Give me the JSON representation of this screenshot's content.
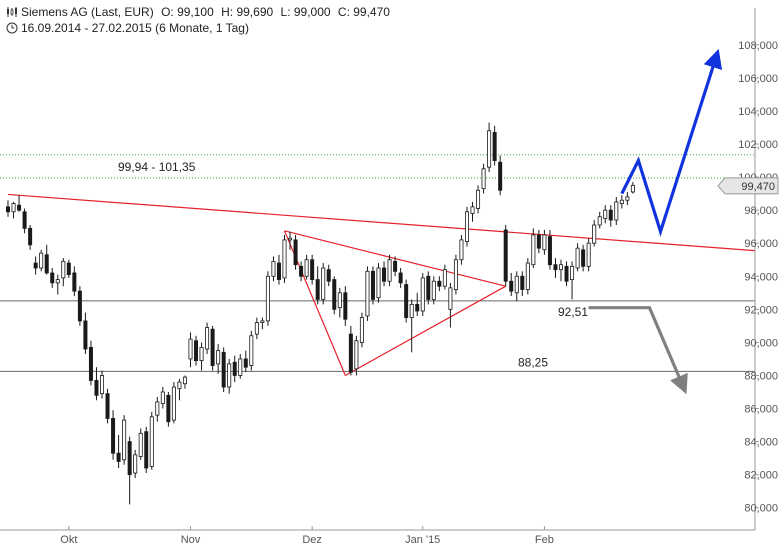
{
  "header": {
    "instrument": "Siemens AG (Last, EUR)",
    "open": "O: 99,100",
    "high": "H: 99,690",
    "low": "L: 99,000",
    "close": "C: 99,470",
    "range": "16.09.2014 - 27.02.2015 (6 Monate, 1 Tag)",
    "chart_icon": "candlestick-chart-icon",
    "clock_icon": "clock-icon"
  },
  "last_price_tag": "99,470",
  "colors": {
    "candle": "#1a1a1a",
    "trendline": "#e8212b",
    "projection_up": "#1133dd",
    "projection_down": "#808080",
    "support_line": "#666666",
    "resistance_zone": "#3aa83a"
  },
  "annotations": {
    "resistance_zone": "99,94 - 101,35",
    "support_high": "92,51",
    "support_low": "88,25"
  },
  "chart_data": {
    "type": "candlestick",
    "ylim": [
      79.5,
      109.5
    ],
    "y_ticks": [
      "80,000",
      "82,000",
      "84,000",
      "86,000",
      "88,000",
      "90,000",
      "92,000",
      "94,000",
      "96,000",
      "98,000",
      "100,000",
      "102,000",
      "104,000",
      "106,000",
      "108,000"
    ],
    "y_tick_values": [
      80,
      82,
      84,
      86,
      88,
      90,
      92,
      94,
      96,
      98,
      100,
      102,
      104,
      106,
      108
    ],
    "x_ticks": [
      "Okt",
      "Nov",
      "Dez",
      "Jan '15",
      "Feb"
    ],
    "x_tick_index": [
      11,
      33,
      55,
      75,
      97
    ],
    "candles": [
      [
        98.2,
        98.6,
        97.6,
        97.9
      ],
      [
        97.9,
        98.5,
        97.5,
        98.4
      ],
      [
        98.3,
        98.9,
        97.9,
        98.0
      ],
      [
        97.9,
        98.1,
        96.6,
        96.9
      ],
      [
        96.9,
        97.1,
        95.6,
        95.9
      ],
      [
        94.8,
        95.2,
        94.1,
        94.5
      ],
      [
        94.5,
        95.6,
        94.3,
        95.4
      ],
      [
        95.3,
        95.9,
        94.1,
        94.2
      ],
      [
        94.2,
        94.5,
        93.3,
        93.6
      ],
      [
        93.6,
        94.1,
        92.9,
        93.8
      ],
      [
        93.9,
        95.1,
        93.4,
        94.9
      ],
      [
        94.8,
        95.0,
        93.9,
        94.1
      ],
      [
        94.2,
        94.6,
        92.8,
        93.1
      ],
      [
        93.1,
        93.4,
        91.0,
        91.3
      ],
      [
        91.3,
        91.8,
        89.3,
        89.6
      ],
      [
        89.7,
        90.1,
        87.4,
        87.7
      ],
      [
        87.7,
        88.5,
        86.5,
        86.8
      ],
      [
        86.9,
        88.3,
        86.6,
        88.0
      ],
      [
        86.9,
        87.2,
        85.1,
        85.4
      ],
      [
        85.4,
        85.9,
        82.9,
        83.3
      ],
      [
        83.3,
        84.4,
        82.4,
        82.8
      ],
      [
        82.9,
        85.6,
        82.6,
        85.3
      ],
      [
        84.0,
        84.3,
        80.2,
        82.0
      ],
      [
        82.1,
        83.5,
        81.8,
        83.2
      ],
      [
        83.1,
        84.8,
        82.9,
        84.5
      ],
      [
        84.6,
        84.9,
        82.1,
        82.4
      ],
      [
        82.5,
        85.8,
        82.3,
        85.5
      ],
      [
        85.6,
        86.7,
        85.2,
        86.4
      ],
      [
        86.3,
        87.3,
        86.0,
        87.0
      ],
      [
        86.8,
        87.0,
        84.9,
        85.2
      ],
      [
        85.3,
        87.6,
        85.1,
        87.3
      ],
      [
        87.2,
        87.8,
        86.5,
        87.6
      ],
      [
        87.5,
        88.0,
        87.2,
        87.9
      ],
      [
        89.0,
        90.6,
        88.5,
        90.2
      ],
      [
        90.1,
        90.4,
        88.6,
        88.9
      ],
      [
        88.9,
        90.0,
        88.3,
        89.7
      ],
      [
        89.6,
        91.2,
        89.3,
        90.9
      ],
      [
        90.8,
        91.0,
        88.3,
        88.6
      ],
      [
        88.7,
        89.9,
        88.1,
        89.5
      ],
      [
        89.4,
        89.7,
        87.0,
        87.3
      ],
      [
        87.3,
        89.0,
        86.9,
        88.7
      ],
      [
        88.8,
        89.2,
        87.6,
        88.0
      ],
      [
        88.0,
        89.3,
        87.8,
        89.0
      ],
      [
        89.0,
        89.5,
        88.2,
        88.5
      ],
      [
        88.6,
        90.7,
        88.3,
        90.4
      ],
      [
        90.5,
        91.5,
        90.2,
        91.2
      ],
      [
        91.2,
        91.5,
        90.8,
        91.3
      ],
      [
        91.3,
        94.3,
        91.0,
        94.0
      ],
      [
        94.0,
        95.2,
        93.7,
        94.9
      ],
      [
        94.8,
        95.3,
        93.5,
        93.8
      ],
      [
        93.9,
        96.5,
        93.6,
        96.2
      ],
      [
        96.2,
        96.7,
        95.6,
        96.3
      ],
      [
        96.2,
        96.5,
        94.4,
        94.7
      ],
      [
        94.6,
        94.9,
        93.7,
        94.0
      ],
      [
        94.0,
        95.3,
        93.8,
        95.0
      ],
      [
        95.0,
        95.3,
        93.5,
        93.8
      ],
      [
        93.8,
        94.6,
        92.3,
        92.6
      ],
      [
        92.6,
        94.8,
        92.3,
        94.5
      ],
      [
        94.4,
        94.7,
        93.4,
        93.7
      ],
      [
        93.8,
        94.0,
        91.7,
        92.0
      ],
      [
        92.1,
        93.3,
        91.5,
        93.0
      ],
      [
        93.0,
        93.4,
        91.0,
        91.4
      ],
      [
        90.5,
        91.0,
        88.0,
        88.2
      ],
      [
        88.4,
        90.4,
        88.0,
        90.1
      ],
      [
        90.0,
        91.8,
        89.7,
        91.5
      ],
      [
        91.6,
        94.6,
        91.3,
        94.3
      ],
      [
        94.3,
        94.6,
        92.3,
        92.6
      ],
      [
        92.7,
        94.8,
        92.4,
        94.5
      ],
      [
        94.5,
        94.9,
        93.4,
        93.7
      ],
      [
        93.7,
        95.3,
        93.4,
        95.0
      ],
      [
        94.9,
        95.2,
        94.0,
        94.3
      ],
      [
        94.2,
        94.5,
        93.3,
        93.6
      ],
      [
        93.5,
        93.8,
        91.2,
        91.5
      ],
      [
        91.5,
        92.6,
        89.4,
        92.3
      ],
      [
        92.3,
        93.0,
        91.6,
        91.9
      ],
      [
        91.9,
        94.2,
        91.6,
        93.9
      ],
      [
        94.0,
        94.3,
        92.3,
        92.6
      ],
      [
        92.6,
        94.0,
        92.3,
        93.7
      ],
      [
        93.7,
        94.0,
        93.1,
        93.4
      ],
      [
        93.4,
        94.7,
        93.2,
        94.4
      ],
      [
        92.0,
        93.6,
        90.9,
        93.3
      ],
      [
        93.2,
        95.3,
        92.9,
        95.0
      ],
      [
        95.0,
        96.5,
        94.7,
        96.2
      ],
      [
        96.1,
        98.2,
        95.8,
        97.9
      ],
      [
        97.8,
        98.5,
        97.3,
        98.2
      ],
      [
        98.1,
        99.5,
        97.8,
        99.2
      ],
      [
        99.3,
        100.8,
        99.0,
        100.5
      ],
      [
        100.6,
        103.3,
        100.3,
        102.8
      ],
      [
        102.7,
        103.1,
        100.7,
        101.0
      ],
      [
        100.9,
        101.3,
        98.9,
        99.2
      ],
      [
        96.8,
        97.1,
        93.4,
        93.7
      ],
      [
        93.7,
        94.2,
        92.8,
        93.1
      ],
      [
        93.0,
        94.3,
        92.5,
        94.0
      ],
      [
        94.0,
        94.3,
        92.8,
        93.2
      ],
      [
        93.2,
        95.1,
        92.9,
        94.8
      ],
      [
        94.7,
        96.9,
        94.5,
        96.5
      ],
      [
        96.5,
        96.8,
        95.4,
        95.7
      ],
      [
        95.6,
        96.8,
        95.3,
        96.5
      ],
      [
        96.4,
        96.8,
        94.4,
        94.7
      ],
      [
        94.7,
        95.1,
        93.9,
        94.4
      ],
      [
        94.4,
        95.0,
        93.7,
        94.7
      ],
      [
        94.6,
        94.9,
        93.4,
        93.7
      ],
      [
        93.8,
        94.9,
        92.6,
        94.6
      ],
      [
        94.5,
        96.0,
        94.3,
        95.7
      ],
      [
        95.6,
        95.9,
        94.3,
        94.6
      ],
      [
        94.6,
        96.3,
        94.3,
        96.0
      ],
      [
        96.0,
        97.4,
        95.8,
        97.1
      ],
      [
        97.1,
        97.9,
        96.9,
        97.6
      ],
      [
        97.5,
        98.3,
        97.2,
        98.0
      ],
      [
        98.0,
        98.3,
        97.0,
        97.4
      ],
      [
        97.4,
        98.8,
        97.1,
        98.5
      ],
      [
        98.4,
        98.9,
        98.1,
        98.6
      ],
      [
        98.6,
        99.1,
        98.3,
        98.8
      ],
      [
        99.1,
        99.7,
        99.0,
        99.5
      ]
    ],
    "candle_dates": [
      "16.09.2014",
      "27.02.2015"
    ],
    "horizontal_lines": [
      {
        "label": "99,94 - 101,35",
        "values": [
          99.94,
          101.35
        ],
        "style": "dotted",
        "color": "#3aa83a"
      },
      {
        "label": "92,51",
        "value": 92.51,
        "style": "solid",
        "color": "#666666"
      },
      {
        "label": "88,25",
        "value": 88.25,
        "style": "solid",
        "color": "#666666"
      }
    ],
    "trendlines": [
      {
        "from": [
          0,
          98.95
        ],
        "to": [
          135,
          95.55
        ],
        "color": "#e8212b"
      },
      {
        "from": [
          50,
          96.75
        ],
        "to": [
          90,
          93.4
        ],
        "color": "#e8212b"
      },
      {
        "from": [
          90,
          93.4
        ],
        "to": [
          61,
          88.0
        ],
        "color": "#e8212b"
      },
      {
        "from": [
          61,
          88.0
        ],
        "to": [
          50,
          96.75
        ],
        "color": "#e8212b"
      }
    ],
    "projections": [
      {
        "direction": "up",
        "color": "#1133dd",
        "points": [
          [
            111,
            99.0
          ],
          [
            114,
            101.0
          ],
          [
            118,
            96.7
          ],
          [
            128,
            107.2
          ]
        ]
      },
      {
        "direction": "down",
        "color": "#808080",
        "points": [
          [
            105,
            92.1
          ],
          [
            116,
            92.1
          ],
          [
            122,
            87.4
          ]
        ]
      }
    ],
    "last_price": 99.47
  }
}
